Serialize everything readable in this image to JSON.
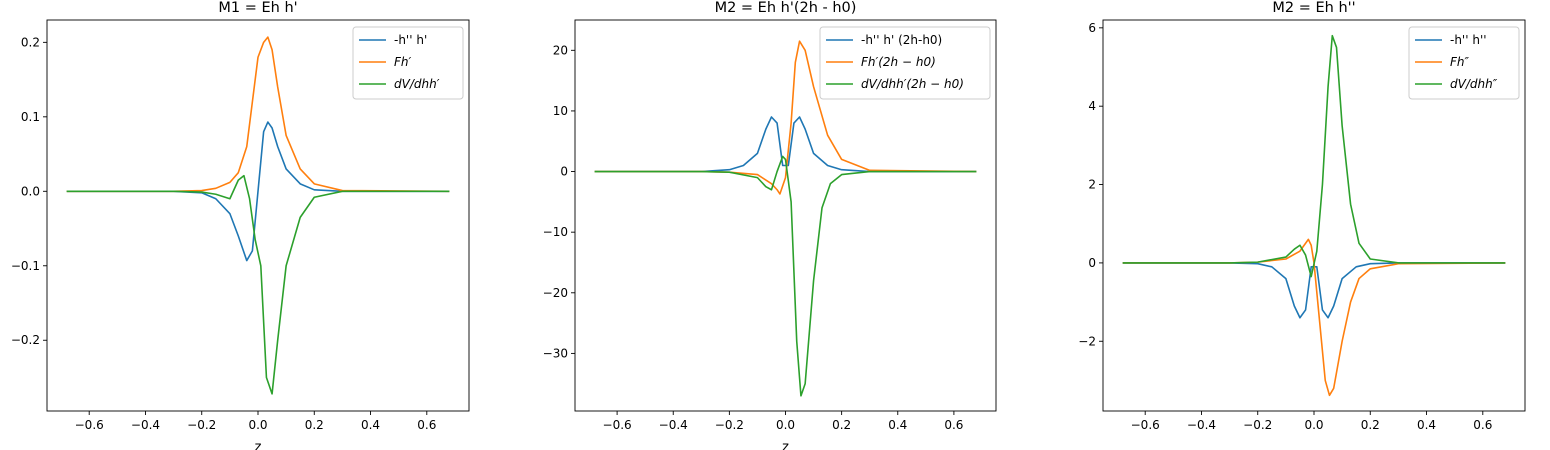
{
  "chart_data": [
    {
      "type": "line",
      "title": "M1 = Eh h'",
      "xlabel": "z",
      "ylabel": "",
      "xlim": [
        -0.75,
        0.75
      ],
      "ylim": [
        -0.295,
        0.23
      ],
      "xticks": [
        -0.6,
        -0.4,
        -0.2,
        0.0,
        0.2,
        0.4,
        0.6
      ],
      "xtick_labels": [
        "−0.6",
        "−0.4",
        "−0.2",
        "0.0",
        "0.2",
        "0.4",
        "0.6"
      ],
      "yticks": [
        -0.2,
        -0.1,
        0.0,
        0.1,
        0.2
      ],
      "ytick_labels": [
        "−0.2",
        "−0.1",
        "0.0",
        "0.1",
        "0.2"
      ],
      "grid": false,
      "legend_position": "top-right",
      "series": [
        {
          "name": "-h'' h'",
          "color": "#1f77b4",
          "x": [
            -0.68,
            -0.3,
            -0.2,
            -0.15,
            -0.1,
            -0.07,
            -0.04,
            -0.02,
            0.0,
            0.02,
            0.035,
            0.05,
            0.07,
            0.1,
            0.15,
            0.2,
            0.3,
            0.68
          ],
          "y": [
            0,
            0,
            -0.002,
            -0.01,
            -0.03,
            -0.06,
            -0.093,
            -0.08,
            0.0,
            0.08,
            0.093,
            0.085,
            0.06,
            0.03,
            0.01,
            0.002,
            0,
            0
          ]
        },
        {
          "name": "Fh′",
          "color": "#ff7f0e",
          "x": [
            -0.68,
            -0.3,
            -0.2,
            -0.15,
            -0.1,
            -0.07,
            -0.04,
            -0.02,
            0.0,
            0.02,
            0.035,
            0.05,
            0.07,
            0.1,
            0.15,
            0.2,
            0.3,
            0.68
          ],
          "y": [
            0,
            0,
            0.001,
            0.004,
            0.012,
            0.025,
            0.06,
            0.12,
            0.18,
            0.2,
            0.207,
            0.19,
            0.14,
            0.075,
            0.03,
            0.01,
            0.001,
            0
          ]
        },
        {
          "name": "dV/dhh′",
          "color": "#2ca02c",
          "x": [
            -0.68,
            -0.3,
            -0.2,
            -0.15,
            -0.1,
            -0.07,
            -0.05,
            -0.03,
            -0.01,
            0.01,
            0.03,
            0.05,
            0.07,
            0.1,
            0.15,
            0.2,
            0.3,
            0.68
          ],
          "y": [
            0,
            0,
            -0.001,
            -0.004,
            -0.01,
            0.015,
            0.021,
            -0.01,
            -0.065,
            -0.1,
            -0.25,
            -0.272,
            -0.2,
            -0.1,
            -0.035,
            -0.008,
            0,
            0
          ]
        }
      ]
    },
    {
      "type": "line",
      "title": "M2 = Eh h'(2h - h0)",
      "xlabel": "z",
      "ylabel": "",
      "xlim": [
        -0.75,
        0.75
      ],
      "ylim": [
        -39.5,
        25
      ],
      "xticks": [
        -0.6,
        -0.4,
        -0.2,
        0.0,
        0.2,
        0.4,
        0.6
      ],
      "xtick_labels": [
        "−0.6",
        "−0.4",
        "−0.2",
        "0.0",
        "0.2",
        "0.4",
        "0.6"
      ],
      "yticks": [
        -30,
        -20,
        -10,
        0,
        10,
        20
      ],
      "ytick_labels": [
        "−30",
        "−20",
        "−10",
        "0",
        "10",
        "20"
      ],
      "grid": false,
      "legend_position": "top-right",
      "series": [
        {
          "name": "-h'' h' (2h-h0)",
          "color": "#1f77b4",
          "x": [
            -0.68,
            -0.3,
            -0.2,
            -0.15,
            -0.1,
            -0.07,
            -0.05,
            -0.03,
            -0.01,
            0.01,
            0.03,
            0.05,
            0.07,
            0.1,
            0.15,
            0.2,
            0.3,
            0.68
          ],
          "y": [
            0,
            0,
            0.3,
            1.0,
            3.0,
            7.0,
            9.0,
            8.0,
            1.0,
            1.0,
            8.0,
            9.0,
            7.0,
            3.0,
            1.0,
            0.3,
            0,
            0
          ]
        },
        {
          "name": "Fh′(2h − h0)",
          "color": "#ff7f0e",
          "x": [
            -0.68,
            -0.3,
            -0.2,
            -0.1,
            -0.05,
            -0.03,
            -0.02,
            0.0,
            0.02,
            0.035,
            0.05,
            0.07,
            0.1,
            0.15,
            0.2,
            0.3,
            0.68
          ],
          "y": [
            0,
            0,
            -0.1,
            -0.5,
            -2.0,
            -3.0,
            -3.7,
            -1.0,
            8.0,
            18.0,
            21.5,
            20.0,
            14.0,
            6.0,
            2.0,
            0.2,
            0
          ]
        },
        {
          "name": "dV/dhh′(2h − h0)",
          "color": "#2ca02c",
          "x": [
            -0.68,
            -0.3,
            -0.2,
            -0.1,
            -0.07,
            -0.05,
            -0.03,
            -0.01,
            0.0,
            0.02,
            0.04,
            0.055,
            0.07,
            0.1,
            0.13,
            0.16,
            0.2,
            0.3,
            0.68
          ],
          "y": [
            0,
            0,
            -0.1,
            -1.0,
            -2.5,
            -3.0,
            0.0,
            2.5,
            2.0,
            -5.0,
            -28.0,
            -37.0,
            -35.0,
            -18.0,
            -6.0,
            -2.0,
            -0.5,
            0,
            0
          ]
        }
      ]
    },
    {
      "type": "line",
      "title": "M2 = Eh h''",
      "xlabel": "",
      "ylabel": "",
      "xlim": [
        -0.75,
        0.75
      ],
      "ylim": [
        -3.78,
        6.2
      ],
      "xticks": [
        -0.6,
        -0.4,
        -0.2,
        0.0,
        0.2,
        0.4,
        0.6
      ],
      "xtick_labels": [
        "−0.6",
        "−0.4",
        "−0.2",
        "0.0",
        "0.2",
        "0.4",
        "0.6"
      ],
      "yticks": [
        -2,
        0,
        2,
        4,
        6
      ],
      "ytick_labels": [
        "−2",
        "0",
        "2",
        "4",
        "6"
      ],
      "grid": false,
      "legend_position": "top-right",
      "series": [
        {
          "name": "-h'' h''",
          "color": "#1f77b4",
          "x": [
            -0.68,
            -0.3,
            -0.2,
            -0.15,
            -0.1,
            -0.07,
            -0.05,
            -0.03,
            -0.01,
            0.01,
            0.03,
            0.05,
            0.07,
            0.1,
            0.15,
            0.2,
            0.3,
            0.68
          ],
          "y": [
            0,
            0,
            -0.02,
            -0.1,
            -0.4,
            -1.1,
            -1.4,
            -1.2,
            -0.1,
            -0.1,
            -1.2,
            -1.4,
            -1.1,
            -0.4,
            -0.1,
            -0.02,
            0,
            0
          ]
        },
        {
          "name": "Fh″",
          "color": "#ff7f0e",
          "x": [
            -0.68,
            -0.3,
            -0.2,
            -0.1,
            -0.05,
            -0.02,
            -0.01,
            0.0,
            0.02,
            0.04,
            0.055,
            0.07,
            0.1,
            0.13,
            0.16,
            0.2,
            0.3,
            0.68
          ],
          "y": [
            0,
            0,
            0.02,
            0.1,
            0.3,
            0.6,
            0.45,
            0.0,
            -1.5,
            -3.0,
            -3.38,
            -3.2,
            -2.0,
            -1.0,
            -0.4,
            -0.15,
            -0.02,
            0
          ]
        },
        {
          "name": "dV/dhh″",
          "color": "#2ca02c",
          "x": [
            -0.68,
            -0.3,
            -0.2,
            -0.1,
            -0.07,
            -0.05,
            -0.03,
            -0.01,
            0.01,
            0.03,
            0.05,
            0.065,
            0.08,
            0.1,
            0.13,
            0.16,
            0.2,
            0.3,
            0.68
          ],
          "y": [
            0,
            0,
            0.02,
            0.15,
            0.35,
            0.45,
            0.2,
            -0.35,
            0.3,
            2.0,
            4.5,
            5.8,
            5.5,
            3.5,
            1.5,
            0.5,
            0.1,
            0,
            0
          ]
        }
      ]
    }
  ]
}
